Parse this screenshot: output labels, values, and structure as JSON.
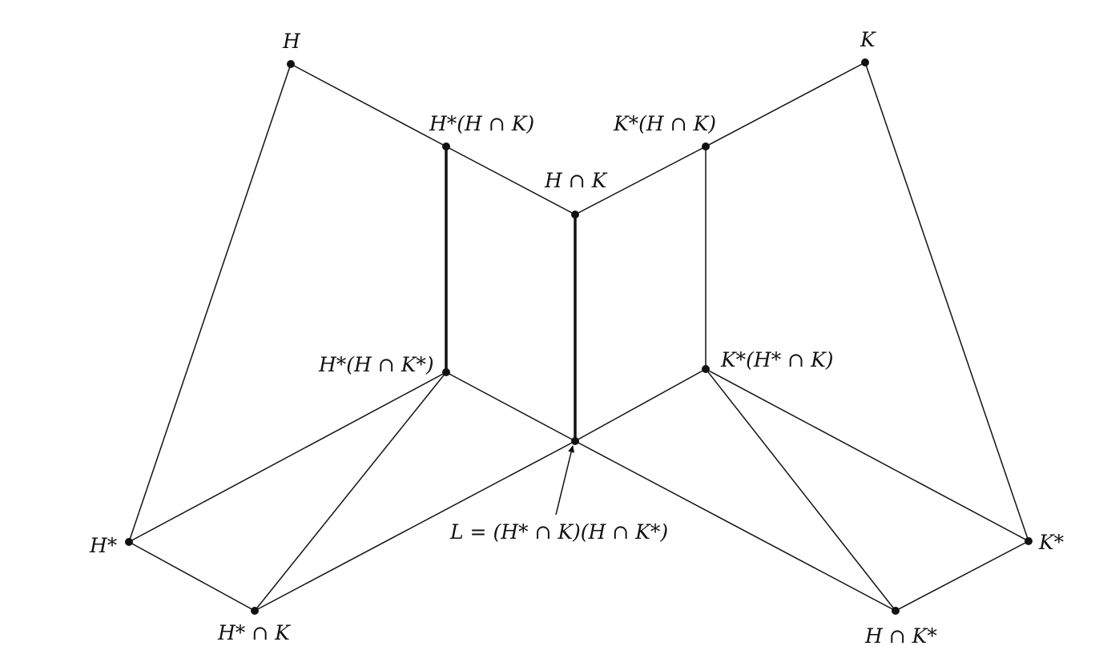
{
  "nodes": {
    "H": {
      "label": "H"
    },
    "K": {
      "label": "K"
    },
    "Hs_HK": {
      "label": "H*(H ∩ K)"
    },
    "Ks_HK": {
      "label": "K*(H ∩ K)"
    },
    "HK": {
      "label": "H ∩ K"
    },
    "Hs_HKs": {
      "label": "H*(H ∩ K*)"
    },
    "Ks_HsK": {
      "label": "K*(H* ∩ K)"
    },
    "L": {
      "label": "L = (H* ∩ K)(H ∩ K*)"
    },
    "Hs": {
      "label": "H*"
    },
    "Ks": {
      "label": "K*"
    },
    "HsK": {
      "label": "H* ∩ K"
    },
    "HKs": {
      "label": "H ∩ K*"
    }
  },
  "edges": [
    {
      "from": "H",
      "to": "Hs_HK",
      "style": "thin"
    },
    {
      "from": "Hs_HK",
      "to": "HK",
      "style": "thin"
    },
    {
      "from": "HK",
      "to": "Ks_HK",
      "style": "thin"
    },
    {
      "from": "Ks_HK",
      "to": "K",
      "style": "thin"
    },
    {
      "from": "H",
      "to": "Hs",
      "style": "thin"
    },
    {
      "from": "K",
      "to": "Ks",
      "style": "thin"
    },
    {
      "from": "Hs_HK",
      "to": "Hs_HKs",
      "style": "bold"
    },
    {
      "from": "HK",
      "to": "L",
      "style": "bold"
    },
    {
      "from": "Ks_HK",
      "to": "Ks_HsK",
      "style": "thin"
    },
    {
      "from": "Hs_HKs",
      "to": "L",
      "style": "thin"
    },
    {
      "from": "L",
      "to": "HKs",
      "style": "thin"
    },
    {
      "from": "Ks_HsK",
      "to": "L",
      "style": "thin"
    },
    {
      "from": "L",
      "to": "HsK",
      "style": "thin"
    },
    {
      "from": "Hs_HKs",
      "to": "Hs",
      "style": "thin"
    },
    {
      "from": "Hs_HKs",
      "to": "HsK",
      "style": "thin"
    },
    {
      "from": "Ks_HsK",
      "to": "Ks",
      "style": "thin"
    },
    {
      "from": "Ks_HsK",
      "to": "HKs",
      "style": "thin"
    },
    {
      "from": "Hs",
      "to": "HsK",
      "style": "thin"
    },
    {
      "from": "Ks",
      "to": "HKs",
      "style": "thin"
    }
  ],
  "annotations": [
    {
      "type": "arrow",
      "target": "L",
      "from_label": "L"
    }
  ],
  "colors": {
    "ink": "#111111",
    "background": "#ffffff"
  }
}
